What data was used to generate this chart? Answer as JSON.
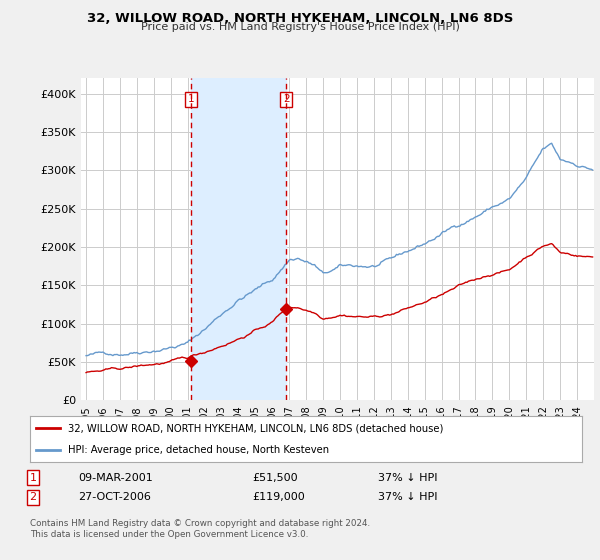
{
  "title": "32, WILLOW ROAD, NORTH HYKEHAM, LINCOLN, LN6 8DS",
  "subtitle": "Price paid vs. HM Land Registry's House Price Index (HPI)",
  "red_label": "32, WILLOW ROAD, NORTH HYKEHAM, LINCOLN, LN6 8DS (detached house)",
  "blue_label": "HPI: Average price, detached house, North Kesteven",
  "annotation1_date": "09-MAR-2001",
  "annotation1_price": "£51,500",
  "annotation1_hpi": "37% ↓ HPI",
  "annotation2_date": "27-OCT-2006",
  "annotation2_price": "£119,000",
  "annotation2_hpi": "37% ↓ HPI",
  "footer": "Contains HM Land Registry data © Crown copyright and database right 2024.\nThis data is licensed under the Open Government Licence v3.0.",
  "ylim": [
    0,
    420000
  ],
  "yticks": [
    0,
    50000,
    100000,
    150000,
    200000,
    250000,
    300000,
    350000,
    400000
  ],
  "ytick_labels": [
    "£0",
    "£50K",
    "£100K",
    "£150K",
    "£200K",
    "£250K",
    "£300K",
    "£350K",
    "£400K"
  ],
  "red_color": "#cc0000",
  "blue_color": "#6699cc",
  "shade_color": "#ddeeff",
  "vline_color": "#cc0000",
  "background_color": "#f0f0f0",
  "plot_bg_color": "#ffffff",
  "grid_color": "#cccccc",
  "sale1_x": 2001.19,
  "sale1_y": 51500,
  "sale2_x": 2006.82,
  "sale2_y": 119000,
  "xmin": 1995.0,
  "xmax": 2024.9,
  "xtick_years": [
    1995,
    1996,
    1997,
    1998,
    1999,
    2000,
    2001,
    2002,
    2003,
    2004,
    2005,
    2006,
    2007,
    2008,
    2009,
    2010,
    2011,
    2012,
    2013,
    2014,
    2015,
    2016,
    2017,
    2018,
    2019,
    2020,
    2021,
    2022,
    2023,
    2024
  ]
}
